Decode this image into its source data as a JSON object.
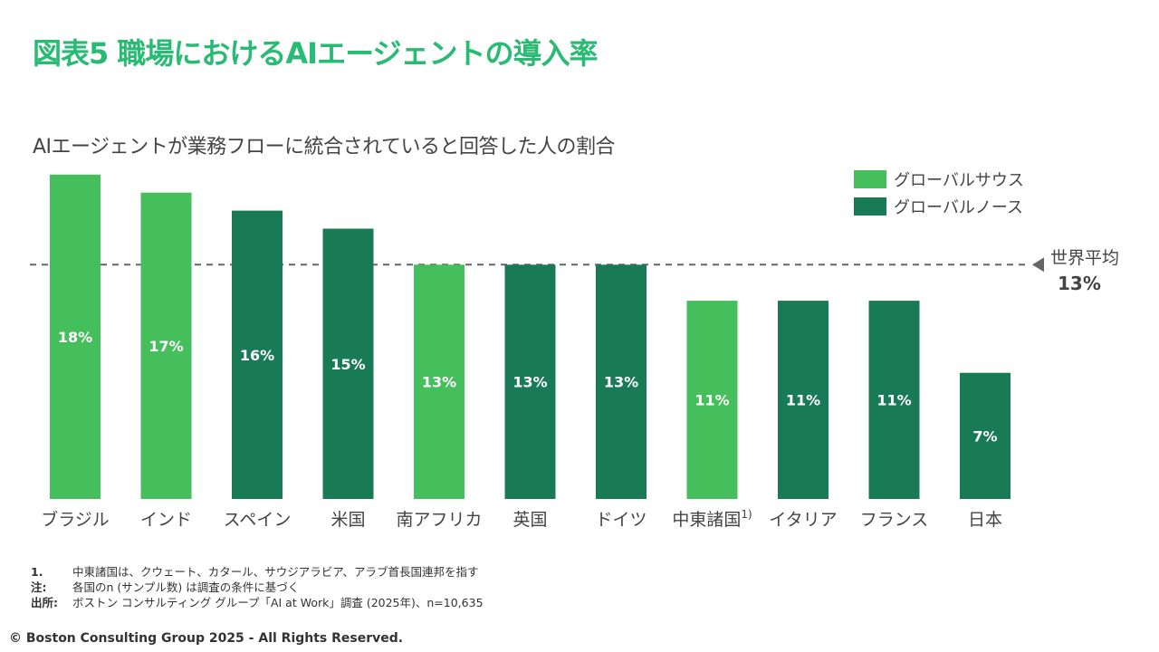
{
  "title": "図表5 職場におけるAIエージェントの導入率",
  "chart_data": {
    "type": "bar",
    "title": "AIエージェントが業務フローに統合されていると回答した人の割合",
    "categories": [
      "ブラジル",
      "インド",
      "スペイン",
      "米国",
      "南アフリカ",
      "英国",
      "ドイツ",
      "中東諸国",
      "イタリア",
      "フランス",
      "日本"
    ],
    "category_superscripts": [
      "",
      "",
      "",
      "",
      "",
      "",
      "",
      "1)",
      "",
      "",
      ""
    ],
    "values": [
      18,
      17,
      16,
      15,
      13,
      13,
      13,
      11,
      11,
      11,
      7
    ],
    "value_labels": [
      "18%",
      "17%",
      "16%",
      "15%",
      "13%",
      "13%",
      "13%",
      "11%",
      "11%",
      "11%",
      "7%"
    ],
    "groups": [
      "south",
      "south",
      "north",
      "north",
      "south",
      "north",
      "north",
      "south",
      "north",
      "north",
      "north"
    ],
    "ylim": [
      0,
      19
    ],
    "legend": [
      {
        "key": "south",
        "label": "グローバルサウス",
        "color": "#45BF5C"
      },
      {
        "key": "north",
        "label": "グローバルノース",
        "color": "#197A56"
      }
    ],
    "reference_line": {
      "value": 13,
      "label": "世界平均",
      "value_label": "13%",
      "color": "#666666"
    }
  },
  "footnotes": [
    {
      "key": "1.",
      "text": "中東諸国は、クウェート、カタール、サウジアラビア、アラブ首長国連邦を指す"
    },
    {
      "key": "注:",
      "text": "各国のn (サンプル数) は調査の条件に基づく"
    },
    {
      "key": "出所:",
      "text": "ボストン コンサルティング グループ「AI at Work」調査 (2025年)、n=10,635"
    }
  ],
  "copyright": "© Boston Consulting Group 2025 - All Rights Reserved."
}
